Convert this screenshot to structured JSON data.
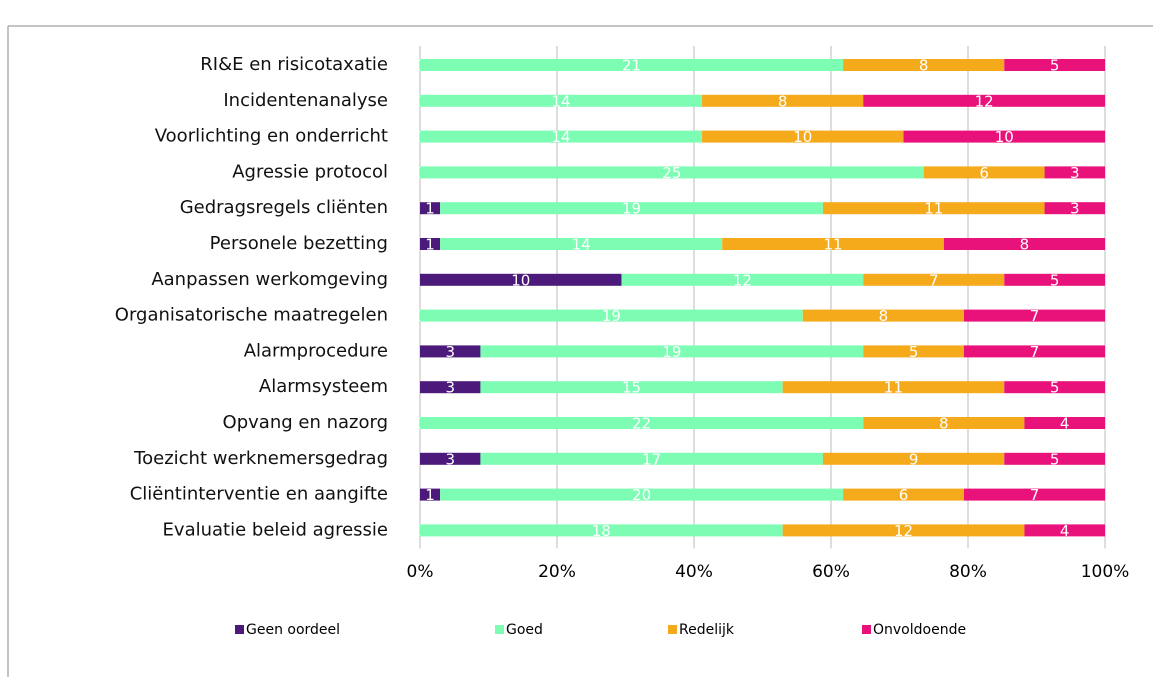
{
  "chart_data": {
    "type": "stacked_percent_bar",
    "categories": [
      "RI&E en risicotaxatie",
      "Incidentenanalyse",
      "Voorlichting en onderricht",
      "Agressie protocol",
      "Gedragsregels cliënten",
      "Personele bezetting",
      "Aanpassen werkomgeving",
      "Organisatorische maatregelen",
      "Alarmprocedure",
      "Alarmsysteem",
      "Opvang en nazorg",
      "Toezicht werknemersgedrag",
      "Cliëntinterventie en aangifte",
      "Evaluatie beleid agressie"
    ],
    "series": [
      {
        "name": "Geen oordeel",
        "color": "#4b1a7a",
        "values": [
          0,
          0,
          0,
          0,
          1,
          1,
          10,
          0,
          3,
          3,
          0,
          3,
          1,
          0
        ]
      },
      {
        "name": "Goed",
        "color": "#7dfcb4",
        "values": [
          21,
          14,
          14,
          25,
          19,
          14,
          12,
          19,
          19,
          15,
          22,
          17,
          20,
          18
        ]
      },
      {
        "name": "Redelijk",
        "color": "#f5aa1c",
        "values": [
          8,
          8,
          10,
          6,
          11,
          11,
          7,
          8,
          5,
          11,
          8,
          9,
          6,
          12
        ]
      },
      {
        "name": "Onvoldoende",
        "color": "#e8127a",
        "values": [
          5,
          12,
          10,
          3,
          3,
          8,
          5,
          7,
          7,
          5,
          4,
          5,
          7,
          4
        ]
      }
    ],
    "xlim": [
      0,
      100
    ],
    "xticks": [
      {
        "value": 0,
        "label": "0%"
      },
      {
        "value": 20,
        "label": "20%"
      },
      {
        "value": 40,
        "label": "40%"
      },
      {
        "value": 60,
        "label": "60%"
      },
      {
        "value": 80,
        "label": "80%"
      },
      {
        "value": 100,
        "label": "100%"
      }
    ],
    "grid": true,
    "legend": "bottom"
  }
}
